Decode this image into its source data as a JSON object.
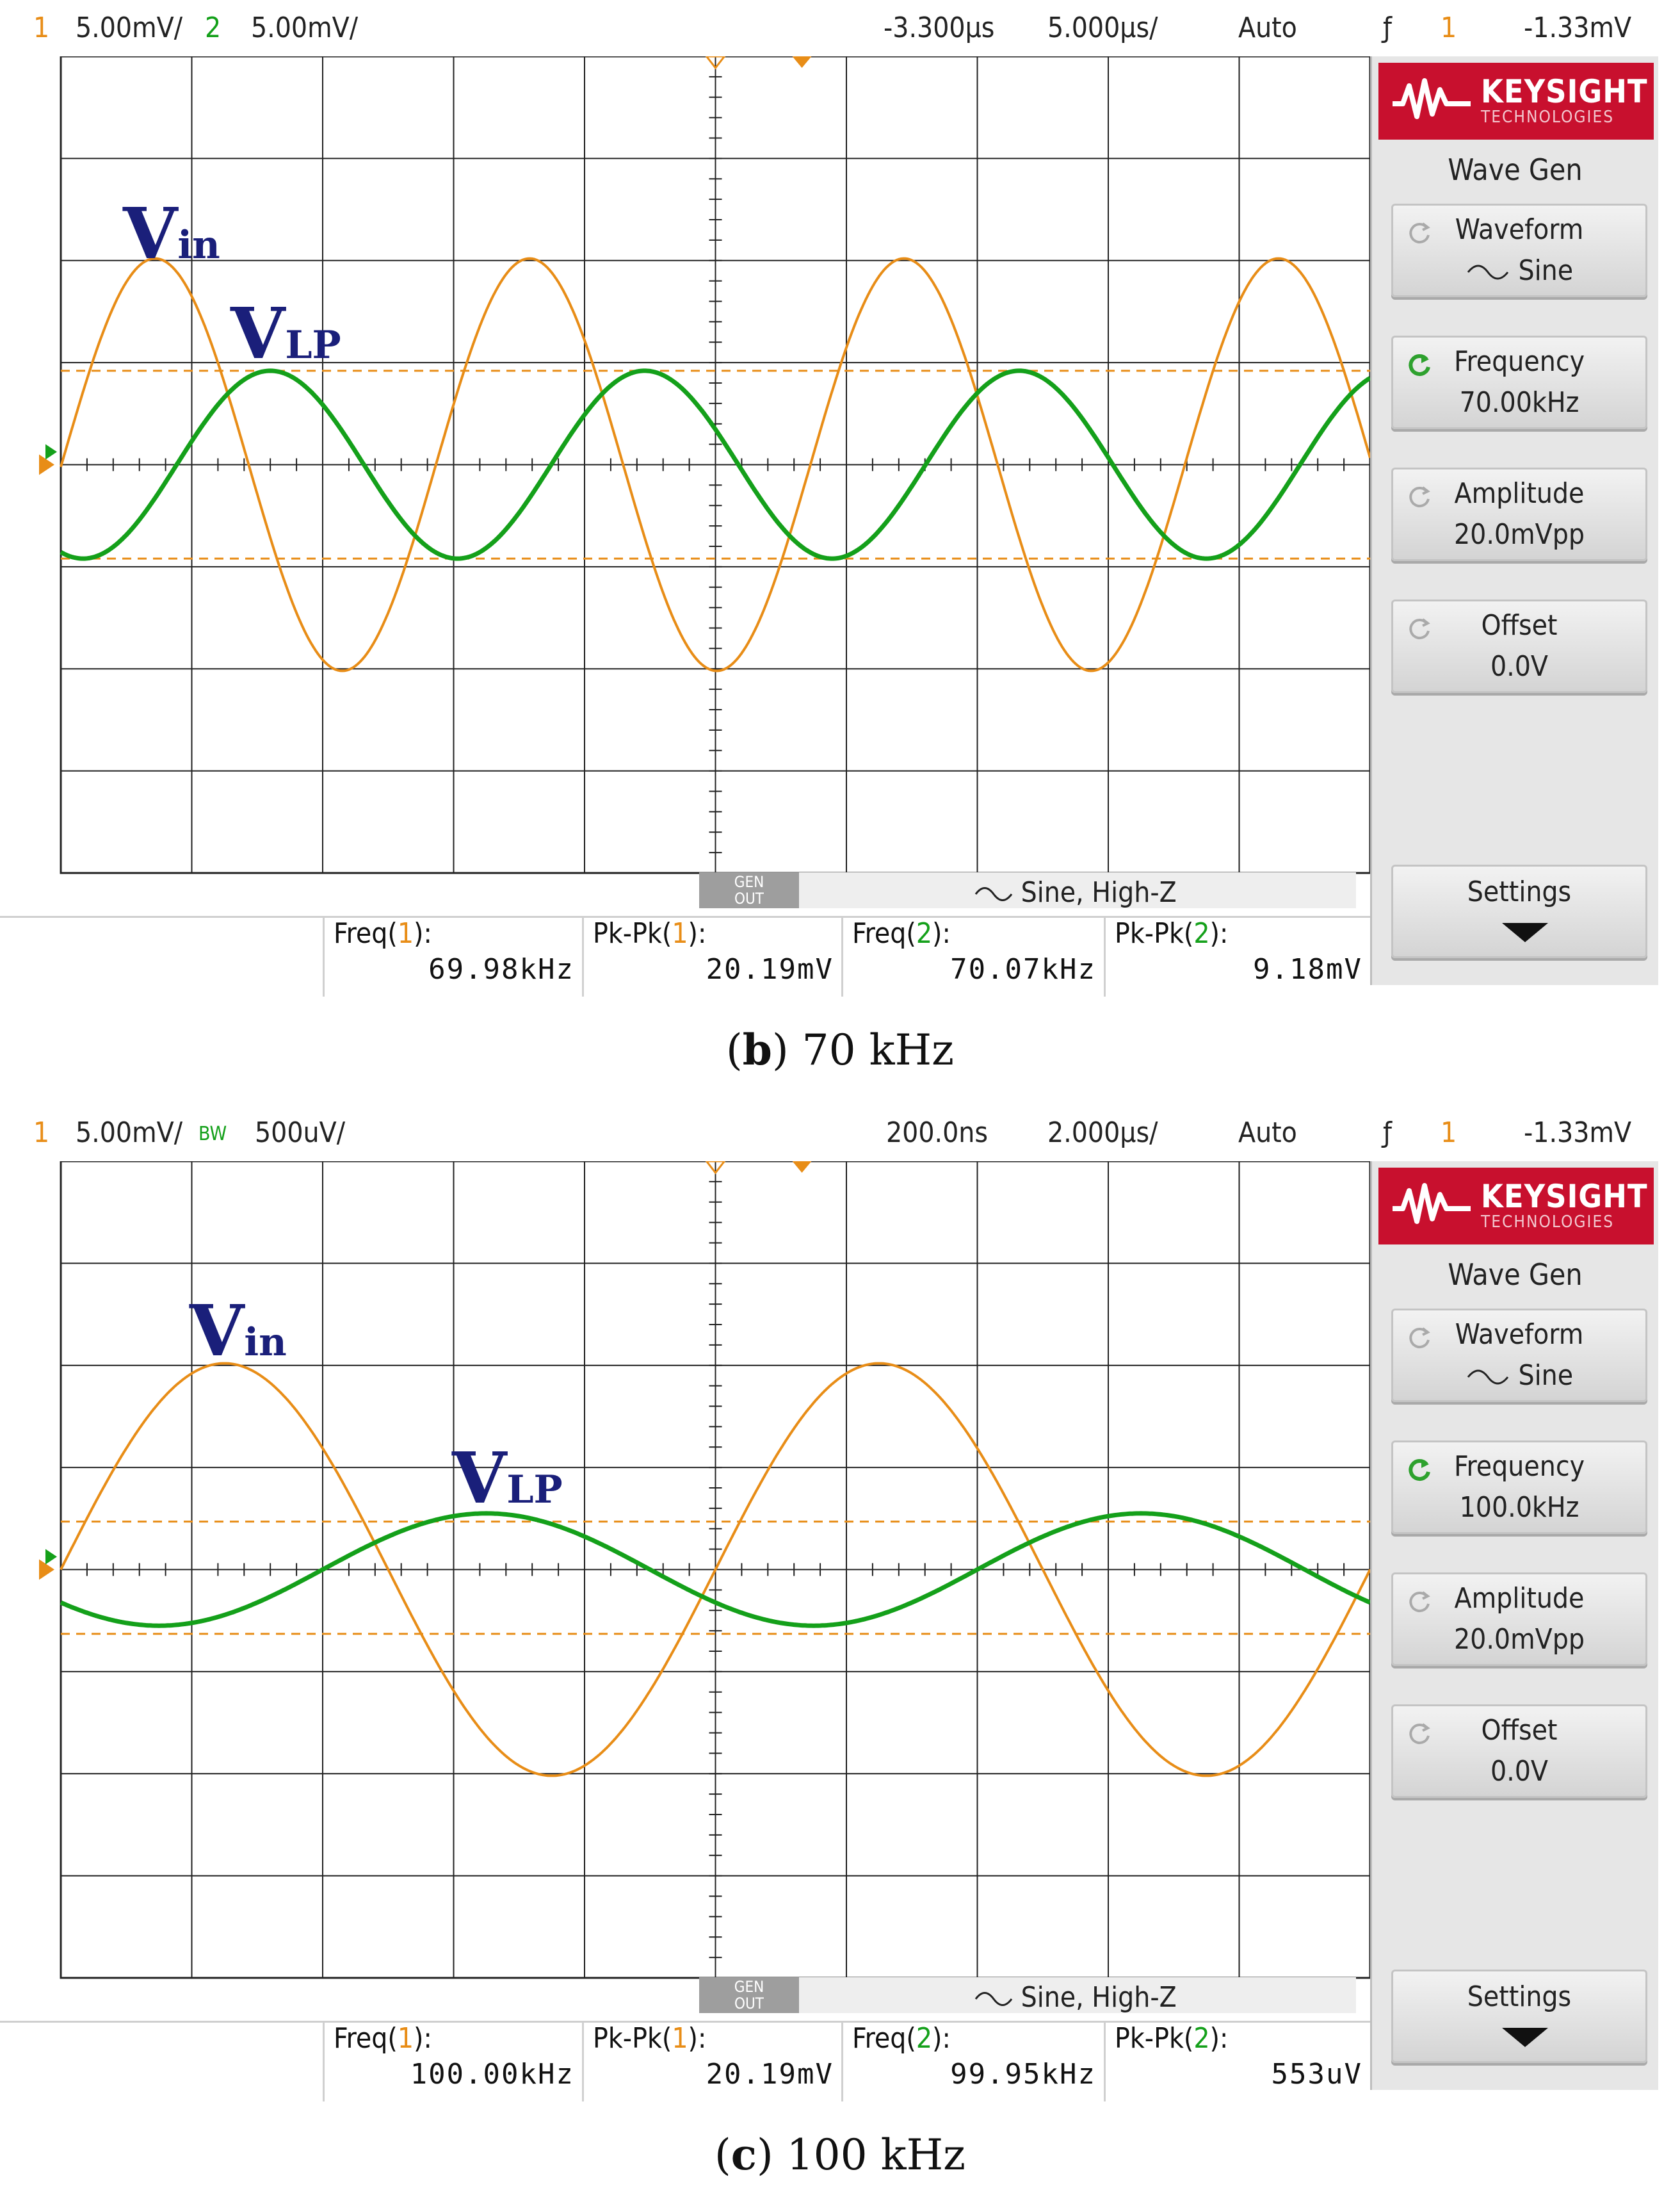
{
  "panels": [
    {
      "caption_letter": "b",
      "caption_rest": ") 70 kHz",
      "caption_open": "(",
      "topbar": {
        "ch1_num": "1",
        "ch1_scale": "5.00mV/",
        "ch2_num": "2",
        "ch2_scale": "5.00mV/",
        "time_pos": "-3.300µs",
        "time_scale": "5.000µs/",
        "trigger_mode": "Auto",
        "trig_icon": "ƒ",
        "trig_src": "1",
        "trig_level": "-1.33mV"
      },
      "labels": {
        "vin_main": "V",
        "vin_sub": "in",
        "vlp_main": "V",
        "vlp_sub": "LP"
      },
      "genbar": {
        "gen_line1": "GEN",
        "gen_line2": "OUT",
        "desc": "Sine, High-Z"
      },
      "measurements": [
        {
          "label_pre": "Freq(",
          "label_ch": "1",
          "label_post": "):",
          "value": "69.98kHz"
        },
        {
          "label_pre": "Pk-Pk(",
          "label_ch": "1",
          "label_post": "):",
          "value": "20.19mV"
        },
        {
          "label_pre": "Freq(",
          "label_ch": "2",
          "label_post": "):",
          "value": "70.07kHz"
        },
        {
          "label_pre": "Pk-Pk(",
          "label_ch": "2",
          "label_post": "):",
          "value": "9.18mV"
        }
      ],
      "side": {
        "brand": "KEYSIGHT",
        "brand_sub": "TECHNOLOGIES",
        "title": "Wave Gen",
        "waveform_label": "Waveform",
        "waveform_value": "Sine",
        "frequency_label": "Frequency",
        "frequency_value": "70.00kHz",
        "amplitude_label": "Amplitude",
        "amplitude_value": "20.0mVpp",
        "offset_label": "Offset",
        "offset_value": "0.0V",
        "settings_label": "Settings"
      },
      "markers": {
        "ch1": "1",
        "ch2": "2"
      }
    },
    {
      "caption_letter": "c",
      "caption_rest": ") 100 kHz",
      "caption_open": "(",
      "topbar": {
        "ch1_num": "1",
        "ch1_scale": "5.00mV/",
        "ch2_num": "BW",
        "ch2_scale": "500uV/",
        "time_pos": "200.0ns",
        "time_scale": "2.000µs/",
        "trigger_mode": "Auto",
        "trig_icon": "ƒ",
        "trig_src": "1",
        "trig_level": "-1.33mV"
      },
      "labels": {
        "vin_main": "V",
        "vin_sub": "in",
        "vlp_main": "V",
        "vlp_sub": "LP"
      },
      "genbar": {
        "gen_line1": "GEN",
        "gen_line2": "OUT",
        "desc": "Sine, High-Z"
      },
      "measurements": [
        {
          "label_pre": "Freq(",
          "label_ch": "1",
          "label_post": "):",
          "value": "100.00kHz"
        },
        {
          "label_pre": "Pk-Pk(",
          "label_ch": "1",
          "label_post": "):",
          "value": "20.19mV"
        },
        {
          "label_pre": "Freq(",
          "label_ch": "2",
          "label_post": "):",
          "value": "99.95kHz"
        },
        {
          "label_pre": "Pk-Pk(",
          "label_ch": "2",
          "label_post": "):",
          "value": "553uV"
        }
      ],
      "side": {
        "brand": "KEYSIGHT",
        "brand_sub": "TECHNOLOGIES",
        "title": "Wave Gen",
        "waveform_label": "Waveform",
        "waveform_value": "Sine",
        "frequency_label": "Frequency",
        "frequency_value": "100.0kHz",
        "amplitude_label": "Amplitude",
        "amplitude_value": "20.0mVpp",
        "offset_label": "Offset",
        "offset_value": "0.0V",
        "settings_label": "Settings"
      },
      "markers": {
        "ch1": "1",
        "ch2": "2"
      }
    }
  ],
  "colors": {
    "ch1": "#e88d17",
    "ch2": "#14a01a",
    "grid": "#222222",
    "label": "#1a1f7a",
    "brand": "#c8102e"
  },
  "chart_data": [
    {
      "type": "line",
      "x_unit": "div",
      "y_unit": "div",
      "xlim": [
        0,
        10
      ],
      "ylim": [
        -4,
        4
      ],
      "series": [
        {
          "amplitude_div": 2.02,
          "period_div": 2.86,
          "peak_at_div": 0.72
        },
        {
          "amplitude_div": 0.92,
          "period_div": 2.86,
          "peak_at_div": 1.6
        }
      ],
      "cursors_div": [
        0.92,
        -0.92
      ]
    },
    {
      "type": "line",
      "x_unit": "div",
      "y_unit": "div",
      "xlim": [
        0,
        10
      ],
      "ylim": [
        -4,
        4
      ],
      "series": [
        {
          "amplitude_div": 2.02,
          "period_div": 5.0,
          "peak_at_div": 1.25
        },
        {
          "amplitude_div": 0.55,
          "period_div": 5.0,
          "peak_at_div": 3.25
        }
      ],
      "cursors_div": [
        0.47,
        -0.63
      ]
    }
  ]
}
